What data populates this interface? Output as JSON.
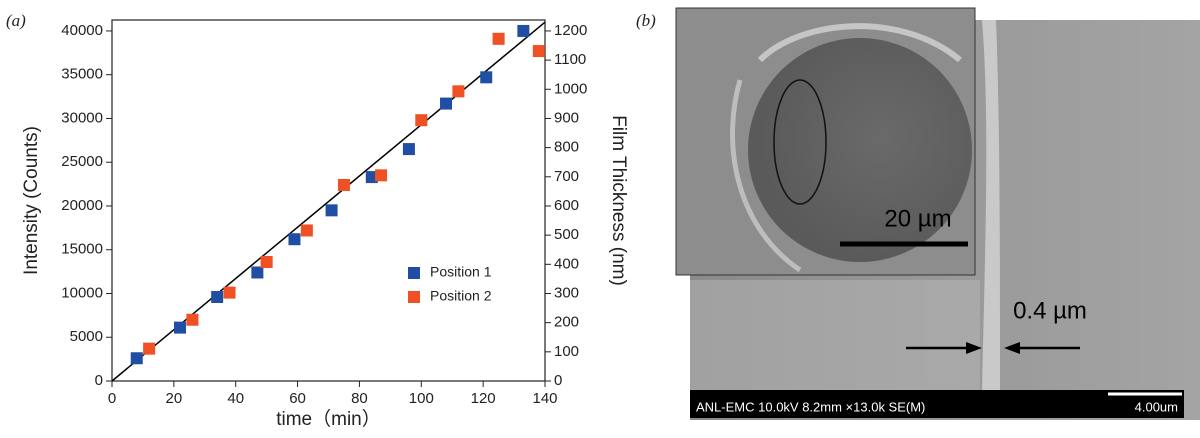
{
  "panel_labels": [
    "(a)",
    "(b)"
  ],
  "chart_data": {
    "type": "scatter",
    "x_label": "time（min）",
    "y_label": "Intensity  (Counts)",
    "y2_label": "Film Thickness (nm)",
    "xlim": [
      0,
      140
    ],
    "xticks": [
      0,
      20,
      40,
      60,
      80,
      100,
      120,
      140
    ],
    "ylim": [
      0,
      41250
    ],
    "yticks": [
      0,
      5000,
      10000,
      15000,
      20000,
      25000,
      30000,
      35000,
      40000
    ],
    "y2lim": [
      0,
      1237.5
    ],
    "y2ticks": [
      0,
      100,
      200,
      300,
      400,
      500,
      600,
      700,
      800,
      900,
      1000,
      1100,
      1200
    ],
    "legend": "lower-right",
    "series": [
      {
        "name": "Position 1",
        "color": "#1f4ea3",
        "x": [
          8,
          22,
          34,
          47,
          59,
          71,
          84,
          96,
          108,
          121,
          133
        ],
        "values": [
          2600,
          6100,
          9600,
          12400,
          16200,
          19500,
          23300,
          26500,
          31700,
          34700,
          40000
        ]
      },
      {
        "name": "Position 2",
        "color": "#ef5024",
        "x": [
          12,
          26,
          38,
          50,
          63,
          75,
          87,
          100,
          112,
          125,
          138
        ],
        "values": [
          3700,
          7000,
          10100,
          13600,
          17200,
          22400,
          23500,
          29800,
          33100,
          39100,
          37700
        ]
      }
    ],
    "fit": {
      "color": "#000000",
      "x": [
        0,
        140
      ],
      "values": [
        0,
        41000
      ]
    }
  },
  "image": {
    "scale_bar": "20 µm",
    "thickness": "0.4 µm",
    "footer": "ANL-EMC 10.0kV 8.2mm ×13.0k SE(M)",
    "footer_scale": "4.00um"
  }
}
